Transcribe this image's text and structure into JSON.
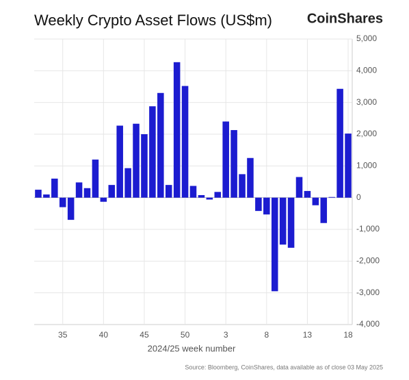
{
  "chart_data": {
    "type": "bar",
    "title": "Weekly Crypto Asset Flows (US$m)",
    "brand": "CoinShares",
    "xlabel": "2024/25 week number",
    "source": "Source: Bloomberg, CoinShares, data available as of close 03 May 2025",
    "categories": [
      null,
      null,
      null,
      "35",
      null,
      null,
      null,
      null,
      "40",
      null,
      null,
      null,
      null,
      "45",
      null,
      null,
      null,
      null,
      "50",
      null,
      null,
      null,
      null,
      "3",
      null,
      null,
      null,
      null,
      "8",
      null,
      null,
      null,
      null,
      "13",
      null,
      null,
      null,
      null,
      "18"
    ],
    "values": [
      250,
      100,
      600,
      -300,
      -700,
      480,
      300,
      1200,
      -130,
      400,
      2270,
      930,
      2330,
      2000,
      2880,
      3300,
      400,
      4270,
      3520,
      370,
      80,
      -60,
      180,
      2400,
      2130,
      740,
      1250,
      -420,
      -530,
      -2950,
      -1480,
      -1580,
      650,
      210,
      -240,
      -800,
      20,
      3430,
      2020
    ],
    "color": "#1c1cd0",
    "ylim": [
      -4000,
      5000
    ],
    "yticks": [
      {
        "value": -4000,
        "label": "-4,000"
      },
      {
        "value": -3000,
        "label": "-3,000"
      },
      {
        "value": -2000,
        "label": "-2,000"
      },
      {
        "value": -1000,
        "label": "-1,000"
      },
      0,
      {
        "value": 1000,
        "label": "1,000"
      },
      {
        "value": 2000,
        "label": "2,000"
      },
      {
        "value": 3000,
        "label": "3,000"
      },
      {
        "value": 4000,
        "label": "4,000"
      },
      {
        "value": 5000,
        "label": "5,000"
      }
    ],
    "y_axis_side": "right",
    "grid": true
  }
}
